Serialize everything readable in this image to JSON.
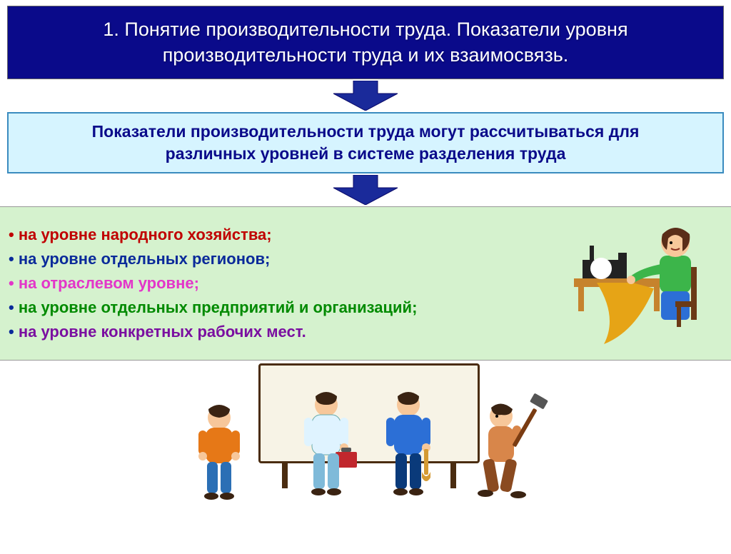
{
  "title": {
    "text": "1. Понятие производительности труда. Показатели уровня производительности труда и их взаимосвязь.",
    "bg": "#0a0a8a",
    "fg": "#ffffff",
    "fontsize": 27
  },
  "arrow": {
    "fill": "#1a2a9a",
    "stroke": "#0a0a6a",
    "width": 90,
    "height": 42
  },
  "subtitle": {
    "text": "Показатели производительности труда могут рассчитываться для различных уровней в системе разделения труда",
    "bg": "#d6f4ff",
    "border": "#3a8bbf",
    "fg": "#0a0a8a",
    "fontsize": 23
  },
  "levels_box": {
    "bg": "#d5f2ce",
    "fontsize": 22,
    "items": [
      {
        "text": "на уровне народного хозяйства;",
        "bullet_color": "#c00000",
        "text_color": "#c00000"
      },
      {
        "text": "на уровне отдельных регионов;",
        "bullet_color": "#0a2a9a",
        "text_color": "#0a2a9a"
      },
      {
        "text": "на отраслевом уровне;",
        "bullet_color": "#e336c9",
        "text_color": "#e336c9"
      },
      {
        "text": "на уровне отдельных предприятий и организаций;",
        "bullet_color": "#0a2a9a",
        "text_color": "#008a00"
      },
      {
        "text": "на уровне конкретных рабочих мест.",
        "bullet_color": "#0a2a9a",
        "text_color": "#7a0fa0"
      }
    ]
  },
  "sewing_illustration": {
    "name": "sewing-woman-icon",
    "skin": "#f7c79a",
    "top": "#3cb54a",
    "pants": "#2c6fd6",
    "hair": "#5a2d18",
    "machine": "#222222",
    "table": "#c6832d",
    "fabric": "#e6a416"
  },
  "workers_illustration": {
    "name": "workers-at-board-icon",
    "board_bg": "#f7f3e6",
    "board_frame": "#4a2c10",
    "figures": [
      {
        "shirt": "#e67817",
        "pants": "#2b6fb5",
        "skin": "#f7c79a",
        "hair": "#3a2312"
      },
      {
        "shirt": "#dff3ff",
        "pants": "#7fbad9",
        "skin": "#f7c79a",
        "hair": "#3a2312",
        "tool": "#c1272d"
      },
      {
        "shirt": "#2c6fd6",
        "pants": "#0a3a7a",
        "skin": "#f7c79a",
        "hair": "#3a2312",
        "tool": "#d49a33"
      },
      {
        "shirt": "#d8864a",
        "pants": "#8a4a20",
        "skin": "#f7c79a",
        "hair": "#3a2312",
        "tool": "#7a3c12"
      }
    ]
  }
}
